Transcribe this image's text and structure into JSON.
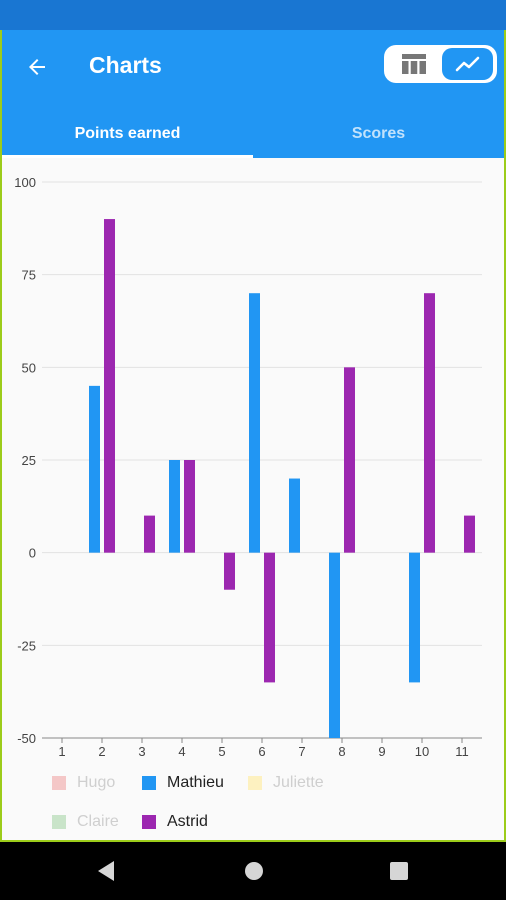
{
  "app": {
    "title": "Charts",
    "accent": "#2196F3",
    "status_bar_color": "#1976D2",
    "view_toggle": {
      "options": [
        "table-icon",
        "line-chart-icon"
      ],
      "selected": "line-chart-icon"
    }
  },
  "tabs": [
    {
      "label": "Points earned",
      "selected": true
    },
    {
      "label": "Scores",
      "selected": false
    }
  ],
  "chart_data": {
    "type": "bar",
    "categories": [
      "1",
      "2",
      "3",
      "4",
      "5",
      "6",
      "7",
      "8",
      "9",
      "10",
      "11"
    ],
    "y_ticks": [
      "100",
      "75",
      "50",
      "25",
      "0",
      "-25",
      "-50"
    ],
    "ylim": [
      -50,
      100
    ],
    "grid": true,
    "legend_position": "bottom",
    "series": [
      {
        "name": "Hugo",
        "color": "#f4c7c7",
        "enabled": false,
        "values": [
          0,
          0,
          0,
          0,
          0,
          0,
          0,
          0,
          0,
          0,
          0
        ]
      },
      {
        "name": "Mathieu",
        "color": "#2196F3",
        "enabled": true,
        "values": [
          0,
          45,
          0,
          25,
          0,
          70,
          20,
          -50,
          0,
          -35,
          0
        ]
      },
      {
        "name": "Juliette",
        "color": "#fdf1c0",
        "enabled": false,
        "values": [
          0,
          0,
          0,
          0,
          0,
          0,
          0,
          0,
          0,
          0,
          0
        ]
      },
      {
        "name": "Claire",
        "color": "#c9e4c9",
        "enabled": false,
        "values": [
          0,
          0,
          0,
          0,
          0,
          0,
          0,
          0,
          0,
          0,
          0
        ]
      },
      {
        "name": "Astrid",
        "color": "#9C27B0",
        "enabled": true,
        "values": [
          0,
          90,
          10,
          25,
          -10,
          -35,
          0,
          50,
          0,
          70,
          10
        ]
      }
    ]
  },
  "navbar": {
    "buttons": [
      "back-nav-icon",
      "home-nav-icon",
      "recents-nav-icon"
    ]
  }
}
